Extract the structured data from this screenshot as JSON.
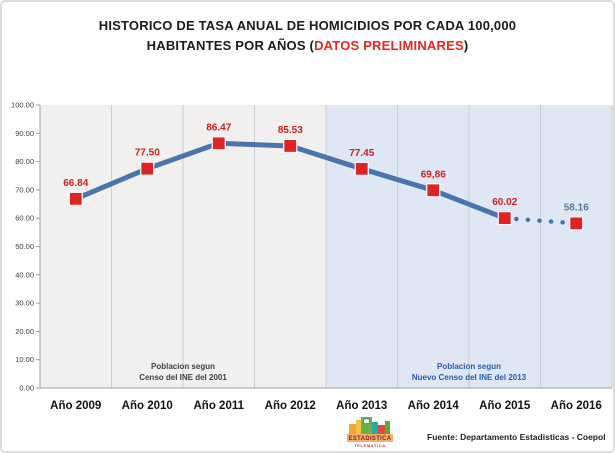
{
  "title": {
    "line1": "HISTORICO DE TASA ANUAL DE HOMICIDIOS POR CADA 100,000",
    "line2_prefix": "HABITANTES POR AÑOS (",
    "line2_highlight": "DATOS PRELIMINARES",
    "line2_suffix": ")",
    "highlight_color": "#e8251f"
  },
  "chart_data": {
    "type": "line",
    "title": "HISTORICO DE TASA ANUAL DE HOMICIDIOS POR CADA 100,000 HABITANTES POR AÑOS (DATOS PRELIMINARES)",
    "categories": [
      "Año 2009",
      "Año 2010",
      "Año 2011",
      "Año 2012",
      "Año 2013",
      "Año 2014",
      "Año 2015",
      "Año 2016"
    ],
    "values": [
      66.84,
      77.5,
      86.47,
      85.53,
      77.45,
      69.86,
      60.02,
      58.16
    ],
    "point_labels": [
      "66.84",
      "77.50",
      "86.47",
      "85.53",
      "77.45",
      "69,86",
      "60.02",
      "58.16"
    ],
    "ylim": [
      0,
      100
    ],
    "ytick_step": 10,
    "ytick_labels": [
      "0.00",
      "10.00",
      "20.00",
      "30.00",
      "40.00",
      "50.00",
      "60.00",
      "70.00",
      "80.00",
      "90.00",
      "100.00"
    ],
    "grid": "vertical-columns-only",
    "legend": "none",
    "dotted_segment_from_index": 6,
    "regions": [
      {
        "from": "Año 2009",
        "to": "Año 2012",
        "bg": "#f1f0ee",
        "label_line1": "Poblacion segun",
        "label_line2": "Censo del INE del 2001",
        "label_color": "#3f3f3f"
      },
      {
        "from": "Año 2013",
        "to": "Año 2016",
        "bg": "#dfe6f4",
        "label_line1": "Poblacion segun",
        "label_line2": "Nuevo Censo del INE del 2013",
        "label_color": "#2a5caa"
      }
    ],
    "line_color": "#4a74ad",
    "marker_color": "#dd2420",
    "label_color": "#cf2020",
    "last_label_color": "#5f7899",
    "gridline_color": "#c9cdd4",
    "axis_color": "#9aa0a6"
  },
  "footer": {
    "source_label": "Fuente",
    "source_text": ": Departamento Estadisticas - Coepol",
    "logo_line1": "ESTADISTICA",
    "logo_line2": "TELEMATICA"
  }
}
